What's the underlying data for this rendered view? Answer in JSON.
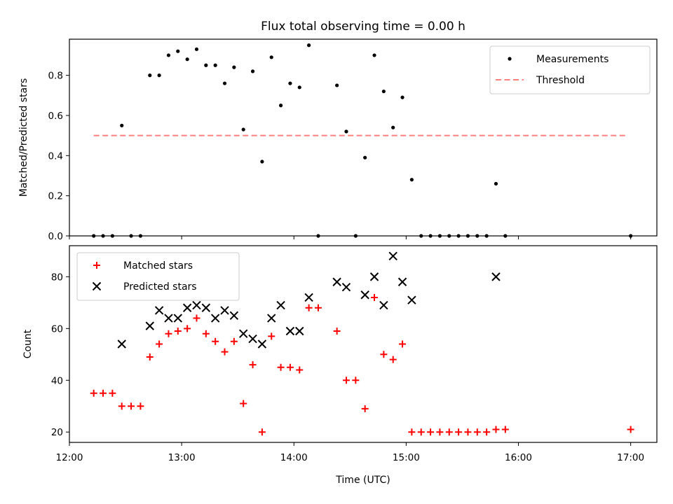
{
  "chart_data": {
    "title": "Flux total observing time = 0.00 h",
    "xlabel": "Time (UTC)",
    "x_ticks": [
      "12:00",
      "13:00",
      "14:00",
      "15:00",
      "16:00",
      "17:00"
    ],
    "x_tick_hours": [
      12,
      13,
      14,
      15,
      16,
      17
    ],
    "xlim": [
      "12:00",
      "17:14"
    ],
    "panels": [
      {
        "type": "scatter",
        "ylabel": "Matched/Predicted stars",
        "ylim": [
          0.0,
          0.98
        ],
        "y_ticks": [
          0.0,
          0.2,
          0.4,
          0.6,
          0.8
        ],
        "y_tick_labels": [
          "0.0",
          "0.2",
          "0.4",
          "0.6",
          "0.8"
        ],
        "legend_position": "top-right",
        "series": [
          {
            "name": "Measurements",
            "marker": "dot",
            "color": "#000000",
            "x": [
              "12:13",
              "12:18",
              "12:23",
              "12:28",
              "12:33",
              "12:38",
              "12:43",
              "12:48",
              "12:53",
              "12:58",
              "13:03",
              "13:08",
              "13:13",
              "13:18",
              "13:23",
              "13:28",
              "13:33",
              "13:38",
              "13:43",
              "13:48",
              "13:53",
              "13:58",
              "14:03",
              "14:08",
              "14:13",
              "14:23",
              "14:28",
              "14:33",
              "14:38",
              "14:43",
              "14:48",
              "14:53",
              "14:58",
              "15:03",
              "15:08",
              "15:13",
              "15:18",
              "15:23",
              "15:28",
              "15:33",
              "15:38",
              "15:43",
              "15:48",
              "15:53",
              "17:00"
            ],
            "y": [
              0.0,
              0.0,
              0.0,
              0.55,
              0.0,
              0.0,
              0.8,
              0.8,
              0.9,
              0.92,
              0.88,
              0.93,
              0.85,
              0.85,
              0.76,
              0.84,
              0.53,
              0.82,
              0.37,
              0.89,
              0.65,
              0.76,
              0.74,
              0.95,
              0.0,
              0.75,
              0.52,
              0.0,
              0.39,
              0.9,
              0.72,
              0.54,
              0.69,
              0.28,
              0.0,
              0.0,
              0.0,
              0.0,
              0.0,
              0.0,
              0.0,
              0.0,
              0.26,
              0.0,
              0.0
            ]
          },
          {
            "name": "Threshold",
            "marker": "dashed-line",
            "color": "#ff7f7f",
            "x": [
              "12:13",
              "16:58"
            ],
            "y": [
              0.5,
              0.5
            ]
          }
        ]
      },
      {
        "type": "scatter",
        "ylabel": "Count",
        "ylim": [
          16,
          92
        ],
        "y_ticks": [
          20,
          40,
          60,
          80
        ],
        "y_tick_labels": [
          "20",
          "40",
          "60",
          "80"
        ],
        "legend_position": "top-left",
        "series": [
          {
            "name": "Matched stars",
            "marker": "plus",
            "color": "#ff0000",
            "x": [
              "12:13",
              "12:18",
              "12:23",
              "12:28",
              "12:33",
              "12:38",
              "12:43",
              "12:48",
              "12:53",
              "12:58",
              "13:03",
              "13:08",
              "13:13",
              "13:18",
              "13:23",
              "13:28",
              "13:33",
              "13:38",
              "13:43",
              "13:48",
              "13:53",
              "13:58",
              "14:03",
              "14:08",
              "14:13",
              "14:23",
              "14:28",
              "14:33",
              "14:38",
              "14:43",
              "14:48",
              "14:53",
              "14:58",
              "15:03",
              "15:08",
              "15:13",
              "15:18",
              "15:23",
              "15:28",
              "15:33",
              "15:38",
              "15:43",
              "15:48",
              "15:53",
              "17:00"
            ],
            "y": [
              35,
              35,
              35,
              30,
              30,
              30,
              49,
              54,
              58,
              59,
              60,
              64,
              58,
              55,
              51,
              55,
              31,
              46,
              20,
              57,
              45,
              45,
              44,
              68,
              68,
              59,
              40,
              40,
              29,
              72,
              50,
              48,
              54,
              20,
              20,
              20,
              20,
              20,
              20,
              20,
              20,
              20,
              21,
              21,
              21
            ]
          },
          {
            "name": "Predicted stars",
            "marker": "x",
            "color": "#000000",
            "x": [
              "12:28",
              "12:43",
              "12:48",
              "12:53",
              "12:58",
              "13:03",
              "13:08",
              "13:13",
              "13:18",
              "13:23",
              "13:28",
              "13:33",
              "13:38",
              "13:43",
              "13:48",
              "13:53",
              "13:58",
              "14:03",
              "14:08",
              "14:23",
              "14:28",
              "14:38",
              "14:43",
              "14:48",
              "14:53",
              "14:58",
              "15:03",
              "15:48"
            ],
            "y": [
              54,
              61,
              67,
              64,
              64,
              68,
              69,
              68,
              64,
              67,
              65,
              58,
              56,
              54,
              64,
              69,
              59,
              59,
              72,
              78,
              76,
              73,
              80,
              69,
              88,
              78,
              71,
              80
            ]
          }
        ]
      }
    ]
  }
}
